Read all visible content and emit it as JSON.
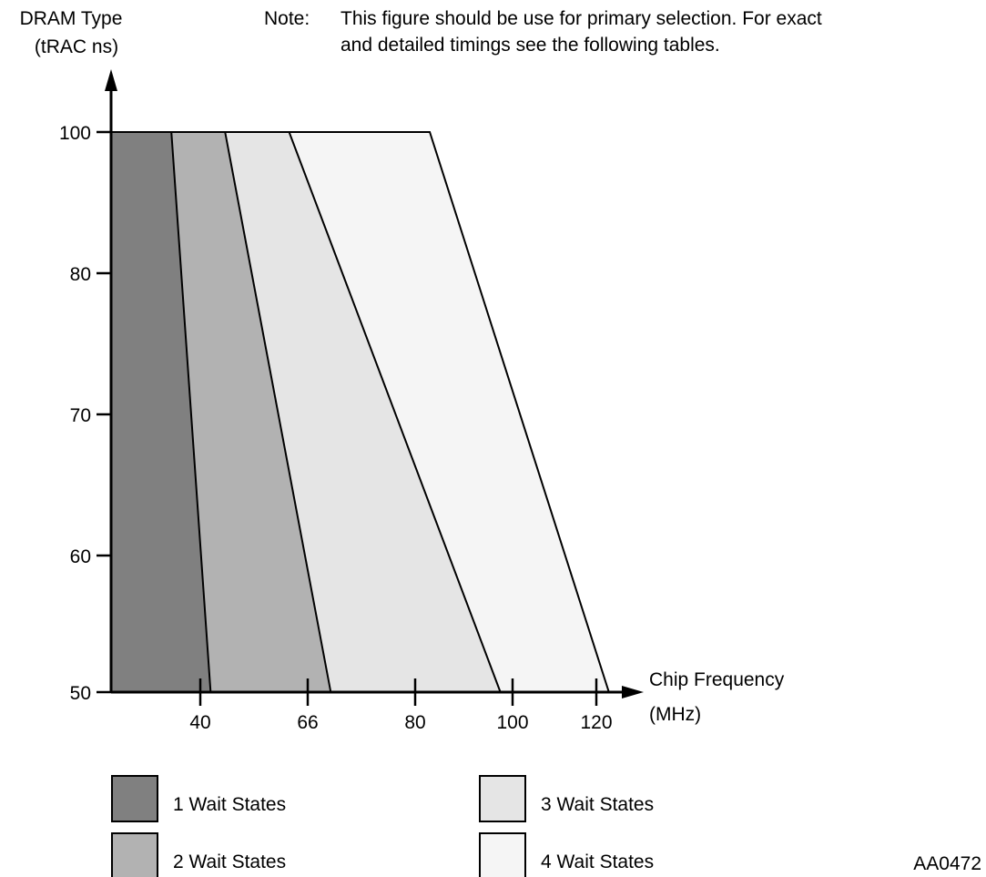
{
  "note": {
    "label": "Note:",
    "lines": [
      "This figure should be use for primary selection. For exact",
      "and detailed timings see the following tables."
    ]
  },
  "figure_id": "AA0472",
  "chart_data": {
    "type": "area",
    "title": "",
    "ylabel": [
      "DRAM Type",
      "(tRAC ns)"
    ],
    "xlabel": [
      "Chip Frequency",
      "(MHz)"
    ],
    "y_ticks": [
      "100",
      "80",
      "70",
      "60",
      "50"
    ],
    "x_ticks": [
      "40",
      "66",
      "80",
      "100",
      "120"
    ],
    "grid": false,
    "legend_position": "bottom",
    "series": [
      {
        "name": "1 Wait States",
        "color": "#808080",
        "right_boundary": {
          "at_100ns_MHz": 33,
          "at_50ns_MHz": 42.5
        }
      },
      {
        "name": "2 Wait States",
        "color": "#b2b2b2",
        "right_boundary": {
          "at_100ns_MHz": 46,
          "at_50ns_MHz": 69
        }
      },
      {
        "name": "3 Wait States",
        "color": "#e5e5e5",
        "right_boundary": {
          "at_100ns_MHz": 61.5,
          "at_50ns_MHz": 97.5
        }
      },
      {
        "name": "4 Wait States",
        "color": "#f5f5f5",
        "right_boundary": {
          "at_100ns_MHz": 83,
          "at_50ns_MHz": 123
        }
      }
    ]
  }
}
